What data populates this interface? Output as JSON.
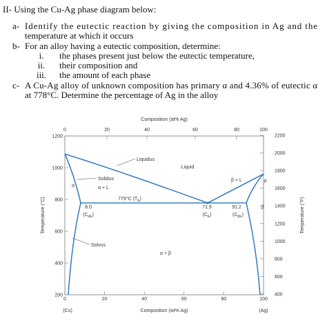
{
  "heading": "II- Using the Cu-Ag phase diagram below:",
  "questions": [
    {
      "label": "a-",
      "text": [
        "Identify the eutectic reaction by giving the composition in Ag and the",
        "temperature at which it occurs"
      ]
    },
    {
      "label": "b-",
      "text": [
        "For an alloy having a eutectic composition, determine:"
      ],
      "parts": [
        {
          "label": "i.",
          "text": "the phases present just below the eutectic temperature,"
        },
        {
          "label": "ii.",
          "text": "their composition and"
        },
        {
          "label": "iii.",
          "text": "the amount of each phase"
        }
      ]
    },
    {
      "label": "c-",
      "text": [
        "A Cu-Ag alloy of unknown composition has primary α and 4.36% of eutectic α",
        "at 778°C. Determine the percentage of Ag in the alloy"
      ]
    }
  ],
  "figure": {
    "top_axis_title": "Composition (at% Ag)",
    "top_ticks": [
      "0",
      "20",
      "40",
      "60",
      "80",
      "100"
    ],
    "bottom_axis_title": "Composition (wt% Ag)",
    "bottom_ticks": [
      "0",
      "20",
      "40",
      "60",
      "80",
      "100"
    ],
    "left_axis_title": "Temperature (°C)",
    "left_ticks": [
      "1200",
      "1000",
      "800",
      "600",
      "400",
      "200"
    ],
    "right_axis_title": "Temperature (°F)",
    "right_ticks": [
      "2200",
      "2000",
      "1800",
      "1600",
      "1400",
      "1200",
      "1000",
      "800",
      "600",
      "400"
    ],
    "end_labels": [
      "(Cu)",
      "(Ag)"
    ],
    "region_labels": [
      {
        "text": "Liquidus"
      },
      {
        "text": "Liquid"
      },
      {
        "text": "Solidus"
      },
      {
        "text": "α + L"
      },
      {
        "text": "α"
      },
      {
        "text": "779°C (T",
        "sub": "E",
        "tail": ")"
      },
      {
        "text": "β + L"
      },
      {
        "text": "F"
      },
      {
        "text": "8.0"
      },
      {
        "text": "(C",
        "sub": "αE",
        "tail": ")"
      },
      {
        "text": "71.9"
      },
      {
        "text": "(C",
        "sub": "E",
        "tail": ")"
      },
      {
        "text": "91.2"
      },
      {
        "text": "(C",
        "sub": "βE",
        "tail": ")"
      },
      {
        "text": "β"
      },
      {
        "text": "Solvus"
      },
      {
        "text": "α + β"
      }
    ]
  }
}
